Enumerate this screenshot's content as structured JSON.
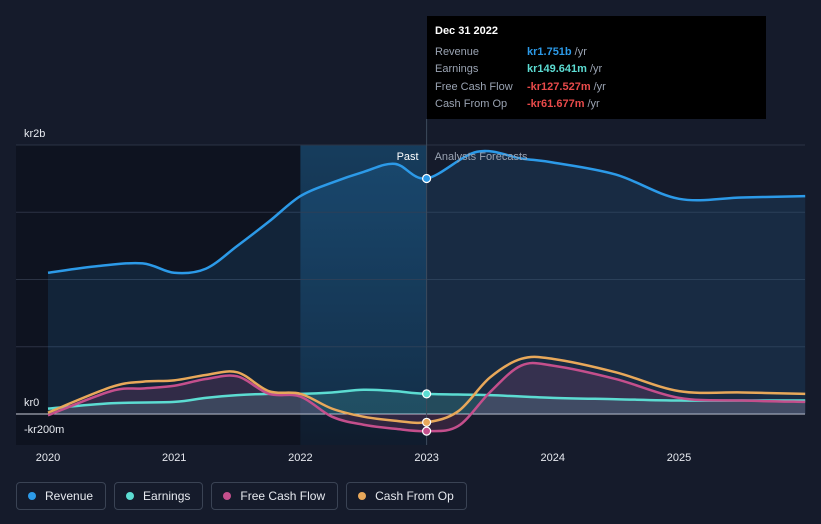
{
  "chart_data": {
    "type": "line",
    "x_unit": "year",
    "x_ticks": [
      "2020",
      "2021",
      "2022",
      "2023",
      "2024",
      "2025"
    ],
    "y_ticks": [
      {
        "value": 2000,
        "label": "kr2b"
      },
      {
        "value": 0,
        "label": "kr0"
      },
      {
        "value": -200,
        "label": "-kr200m"
      }
    ],
    "ylim": [
      -250,
      2250
    ],
    "xlim": [
      2019.75,
      2026.0
    ],
    "past_label": "Past",
    "forecast_label": "Analysts Forecasts",
    "divider_x": 2023.0,
    "highlight_start_x": 2022.0,
    "series": [
      {
        "name": "Revenue",
        "color": "#2c9ae8",
        "fill": true,
        "points": [
          [
            2020.0,
            1050
          ],
          [
            2020.4,
            1100
          ],
          [
            2020.75,
            1120
          ],
          [
            2021.0,
            1050
          ],
          [
            2021.25,
            1080
          ],
          [
            2021.5,
            1250
          ],
          [
            2021.75,
            1430
          ],
          [
            2022.0,
            1620
          ],
          [
            2022.25,
            1720
          ],
          [
            2022.5,
            1800
          ],
          [
            2022.75,
            1860
          ],
          [
            2023.0,
            1751
          ],
          [
            2023.4,
            1950
          ],
          [
            2023.75,
            1900
          ],
          [
            2024.0,
            1870
          ],
          [
            2024.5,
            1780
          ],
          [
            2025.0,
            1600
          ],
          [
            2025.5,
            1610
          ],
          [
            2026.0,
            1620
          ]
        ]
      },
      {
        "name": "Earnings",
        "color": "#5cdcd2",
        "fill": true,
        "points": [
          [
            2020.0,
            40
          ],
          [
            2020.5,
            80
          ],
          [
            2021.0,
            90
          ],
          [
            2021.25,
            120
          ],
          [
            2021.5,
            140
          ],
          [
            2021.75,
            150
          ],
          [
            2022.0,
            150
          ],
          [
            2022.25,
            160
          ],
          [
            2022.5,
            180
          ],
          [
            2022.75,
            170
          ],
          [
            2023.0,
            149.6
          ],
          [
            2023.5,
            140
          ],
          [
            2024.0,
            120
          ],
          [
            2024.5,
            110
          ],
          [
            2025.0,
            100
          ],
          [
            2025.5,
            100
          ],
          [
            2026.0,
            100
          ]
        ]
      },
      {
        "name": "Free Cash Flow",
        "color": "#c44f8c",
        "fill": true,
        "points": [
          [
            2020.0,
            -10
          ],
          [
            2020.5,
            170
          ],
          [
            2020.75,
            190
          ],
          [
            2021.0,
            210
          ],
          [
            2021.25,
            260
          ],
          [
            2021.5,
            280
          ],
          [
            2021.75,
            150
          ],
          [
            2022.0,
            130
          ],
          [
            2022.25,
            -20
          ],
          [
            2022.5,
            -80
          ],
          [
            2022.75,
            -110
          ],
          [
            2023.0,
            -127.5
          ],
          [
            2023.25,
            -90
          ],
          [
            2023.5,
            160
          ],
          [
            2023.75,
            360
          ],
          [
            2024.0,
            360
          ],
          [
            2024.5,
            260
          ],
          [
            2025.0,
            120
          ],
          [
            2025.5,
            100
          ],
          [
            2026.0,
            90
          ]
        ]
      },
      {
        "name": "Cash From Op",
        "color": "#e8a85a",
        "fill": false,
        "points": [
          [
            2020.0,
            10
          ],
          [
            2020.5,
            200
          ],
          [
            2020.75,
            240
          ],
          [
            2021.0,
            250
          ],
          [
            2021.25,
            290
          ],
          [
            2021.5,
            310
          ],
          [
            2021.75,
            170
          ],
          [
            2022.0,
            150
          ],
          [
            2022.25,
            40
          ],
          [
            2022.5,
            -20
          ],
          [
            2022.75,
            -50
          ],
          [
            2023.0,
            -61.7
          ],
          [
            2023.25,
            20
          ],
          [
            2023.5,
            270
          ],
          [
            2023.75,
            410
          ],
          [
            2024.0,
            410
          ],
          [
            2024.5,
            310
          ],
          [
            2025.0,
            170
          ],
          [
            2025.5,
            160
          ],
          [
            2026.0,
            150
          ]
        ]
      }
    ]
  },
  "tooltip": {
    "date": "Dec 31 2022",
    "rows": [
      {
        "label": "Revenue",
        "value": "kr1.751b",
        "unit": "/yr",
        "color": "#2c9ae8"
      },
      {
        "label": "Earnings",
        "value": "kr149.641m",
        "unit": "/yr",
        "color": "#5cdcd2"
      },
      {
        "label": "Free Cash Flow",
        "value": "-kr127.527m",
        "unit": "/yr",
        "color": "#e84a4a"
      },
      {
        "label": "Cash From Op",
        "value": "-kr61.677m",
        "unit": "/yr",
        "color": "#e84a4a"
      }
    ]
  },
  "legend": [
    {
      "label": "Revenue",
      "color": "#2c9ae8"
    },
    {
      "label": "Earnings",
      "color": "#5cdcd2"
    },
    {
      "label": "Free Cash Flow",
      "color": "#c44f8c"
    },
    {
      "label": "Cash From Op",
      "color": "#e8a85a"
    }
  ]
}
